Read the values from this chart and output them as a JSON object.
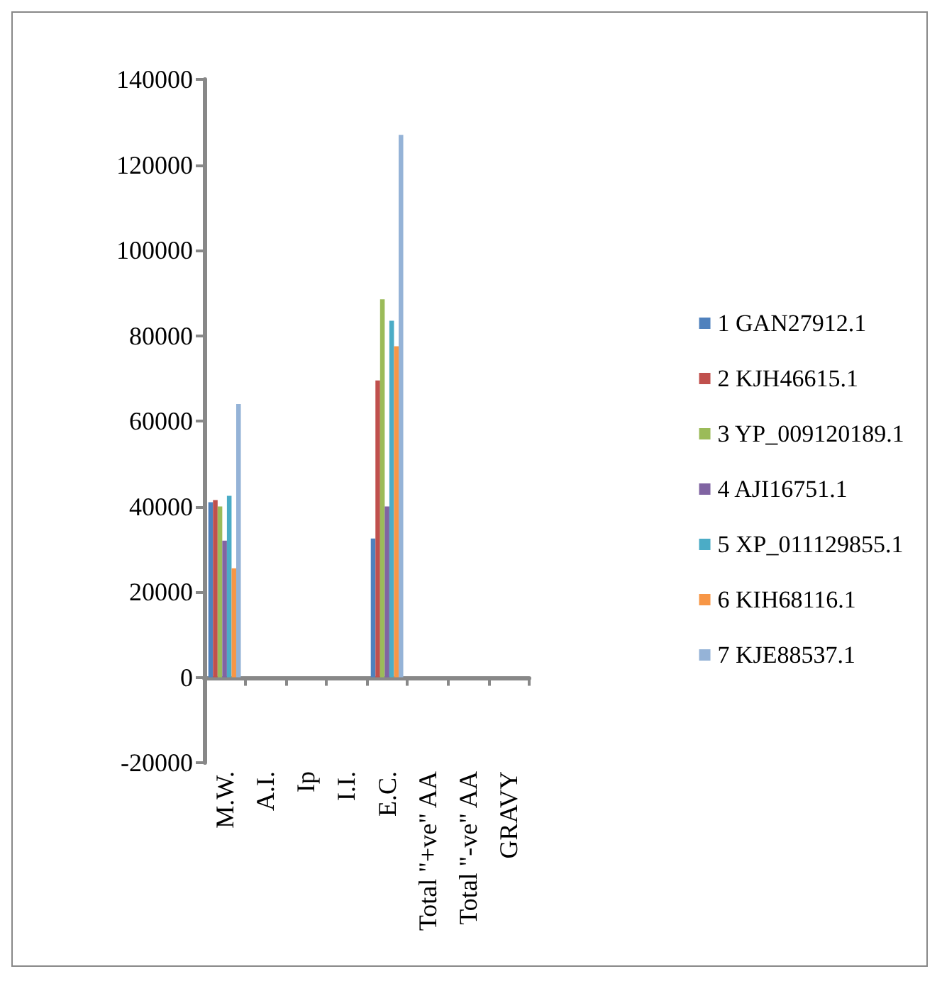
{
  "chart_data": {
    "type": "bar",
    "categories": [
      "M.W.",
      "A.I.",
      "Ip",
      "I.I.",
      "E.C.",
      "Total \"+ve\" AA",
      "Total \"-ve\" AA",
      "GRAVY"
    ],
    "series": [
      {
        "name": "1 GAN27912.1",
        "color": "#4f81bd",
        "values": [
          41000,
          0,
          0,
          0,
          32500,
          0,
          0,
          0
        ]
      },
      {
        "name": "2 KJH46615.1",
        "color": "#c0504d",
        "values": [
          41500,
          0,
          0,
          0,
          69500,
          0,
          0,
          0
        ]
      },
      {
        "name": "3 YP_009120189.1",
        "color": "#9bbb59",
        "values": [
          40000,
          0,
          0,
          0,
          88500,
          0,
          0,
          0
        ]
      },
      {
        "name": "4 AJI16751.1",
        "color": "#8064a2",
        "values": [
          32000,
          0,
          0,
          0,
          40000,
          0,
          0,
          0
        ]
      },
      {
        "name": "5 XP_011129855.1",
        "color": "#4bacc6",
        "values": [
          42500,
          0,
          0,
          0,
          83500,
          0,
          0,
          0
        ]
      },
      {
        "name": "6 KIH68116.1",
        "color": "#f79646",
        "values": [
          25500,
          0,
          0,
          0,
          77500,
          0,
          0,
          0
        ]
      },
      {
        "name": "7 KJE88537.1",
        "color": "#95b3d7",
        "values": [
          64000,
          0,
          0,
          0,
          127000,
          0,
          0,
          0
        ]
      }
    ],
    "ylim": [
      -20000,
      140000
    ],
    "yticks": [
      -20000,
      0,
      20000,
      40000,
      60000,
      80000,
      100000,
      120000,
      140000
    ],
    "legend": "right"
  }
}
